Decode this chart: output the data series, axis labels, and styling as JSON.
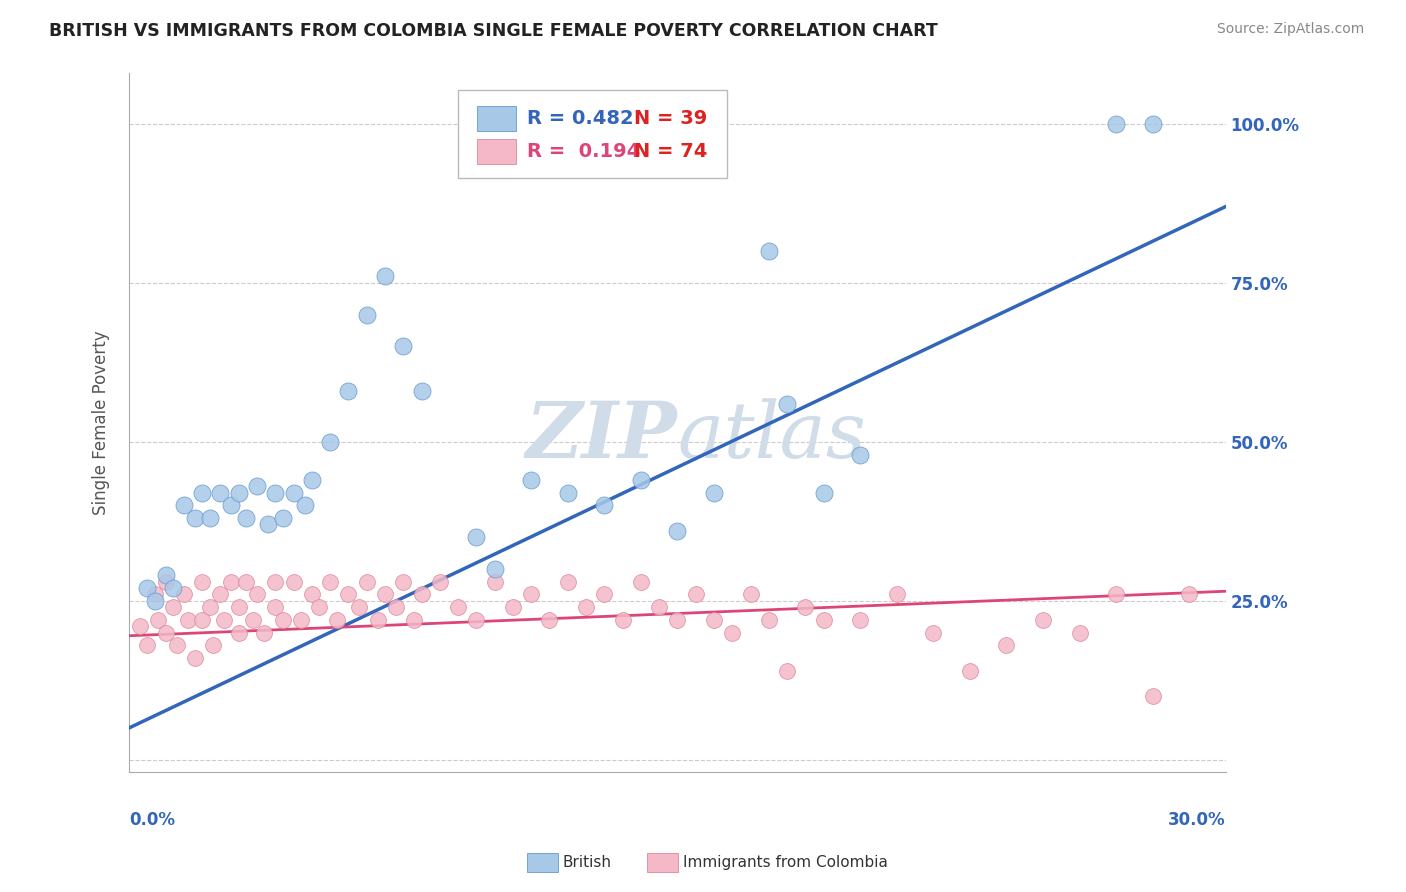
{
  "title": "BRITISH VS IMMIGRANTS FROM COLOMBIA SINGLE FEMALE POVERTY CORRELATION CHART",
  "source": "Source: ZipAtlas.com",
  "ylabel": "Single Female Poverty",
  "xmin": 0.0,
  "xmax": 0.3,
  "ymin": -0.02,
  "ymax": 1.08,
  "yticks": [
    0.0,
    0.25,
    0.5,
    0.75,
    1.0
  ],
  "ytick_labels": [
    "",
    "25.0%",
    "50.0%",
    "75.0%",
    "100.0%"
  ],
  "blue_R": 0.482,
  "blue_N": 39,
  "pink_R": 0.194,
  "pink_N": 74,
  "blue_label": "British",
  "pink_label": "Immigrants from Colombia",
  "blue_color": "#a8c8e8",
  "pink_color": "#f4b8c8",
  "blue_edge_color": "#6699cc",
  "pink_edge_color": "#dd8899",
  "blue_line_color": "#3366bb",
  "pink_line_color": "#dd4477",
  "right_label_color": "#3366bb",
  "watermark_color": "#d0dce8",
  "title_color": "#222222",
  "source_color": "#888888",
  "blue_trend_x0": 0.0,
  "blue_trend_y0": 0.05,
  "blue_trend_x1": 0.3,
  "blue_trend_y1": 0.87,
  "pink_trend_x0": 0.0,
  "pink_trend_y0": 0.195,
  "pink_trend_x1": 0.3,
  "pink_trend_y1": 0.265,
  "blue_scatter_x": [
    0.005,
    0.007,
    0.01,
    0.012,
    0.015,
    0.018,
    0.02,
    0.022,
    0.025,
    0.028,
    0.03,
    0.032,
    0.035,
    0.038,
    0.04,
    0.042,
    0.045,
    0.048,
    0.05,
    0.055,
    0.06,
    0.065,
    0.07,
    0.075,
    0.08,
    0.095,
    0.1,
    0.11,
    0.12,
    0.13,
    0.14,
    0.15,
    0.16,
    0.175,
    0.18,
    0.19,
    0.2,
    0.27,
    0.28
  ],
  "blue_scatter_y": [
    0.27,
    0.25,
    0.29,
    0.27,
    0.4,
    0.38,
    0.42,
    0.38,
    0.42,
    0.4,
    0.42,
    0.38,
    0.43,
    0.37,
    0.42,
    0.38,
    0.42,
    0.4,
    0.44,
    0.5,
    0.58,
    0.7,
    0.76,
    0.65,
    0.58,
    0.35,
    0.3,
    0.44,
    0.42,
    0.4,
    0.44,
    0.36,
    0.42,
    0.8,
    0.56,
    0.42,
    0.48,
    1.0,
    1.0
  ],
  "pink_scatter_x": [
    0.003,
    0.005,
    0.007,
    0.008,
    0.01,
    0.01,
    0.012,
    0.013,
    0.015,
    0.016,
    0.018,
    0.02,
    0.02,
    0.022,
    0.023,
    0.025,
    0.026,
    0.028,
    0.03,
    0.03,
    0.032,
    0.034,
    0.035,
    0.037,
    0.04,
    0.04,
    0.042,
    0.045,
    0.047,
    0.05,
    0.052,
    0.055,
    0.057,
    0.06,
    0.063,
    0.065,
    0.068,
    0.07,
    0.073,
    0.075,
    0.078,
    0.08,
    0.085,
    0.09,
    0.095,
    0.1,
    0.105,
    0.11,
    0.115,
    0.12,
    0.125,
    0.13,
    0.135,
    0.14,
    0.145,
    0.15,
    0.155,
    0.16,
    0.165,
    0.17,
    0.175,
    0.18,
    0.185,
    0.19,
    0.2,
    0.21,
    0.22,
    0.23,
    0.24,
    0.25,
    0.26,
    0.27,
    0.28,
    0.29
  ],
  "pink_scatter_y": [
    0.21,
    0.18,
    0.26,
    0.22,
    0.28,
    0.2,
    0.24,
    0.18,
    0.26,
    0.22,
    0.16,
    0.28,
    0.22,
    0.24,
    0.18,
    0.26,
    0.22,
    0.28,
    0.24,
    0.2,
    0.28,
    0.22,
    0.26,
    0.2,
    0.28,
    0.24,
    0.22,
    0.28,
    0.22,
    0.26,
    0.24,
    0.28,
    0.22,
    0.26,
    0.24,
    0.28,
    0.22,
    0.26,
    0.24,
    0.28,
    0.22,
    0.26,
    0.28,
    0.24,
    0.22,
    0.28,
    0.24,
    0.26,
    0.22,
    0.28,
    0.24,
    0.26,
    0.22,
    0.28,
    0.24,
    0.22,
    0.26,
    0.22,
    0.2,
    0.26,
    0.22,
    0.14,
    0.24,
    0.22,
    0.22,
    0.26,
    0.2,
    0.14,
    0.18,
    0.22,
    0.2,
    0.26,
    0.1,
    0.26
  ],
  "grid_color": "#cccccc",
  "spine_color": "#aaaaaa"
}
